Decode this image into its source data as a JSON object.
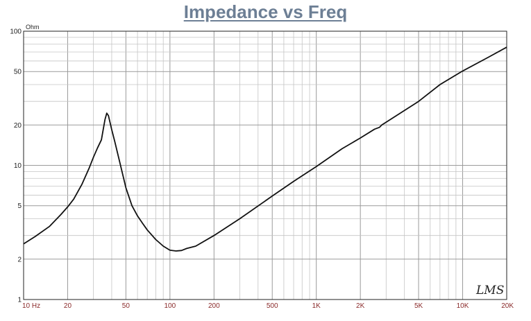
{
  "chart_data": {
    "type": "line",
    "title": "Impedance vs Freq",
    "ylabel": "Ohm",
    "xlabel": "",
    "x_scale": "log",
    "y_scale": "log",
    "xlim": [
      10,
      20000
    ],
    "ylim": [
      1,
      100
    ],
    "grid": true,
    "legend": "none",
    "x_ticks": [
      {
        "value": 10,
        "label": "10 Hz"
      },
      {
        "value": 20,
        "label": "20"
      },
      {
        "value": 50,
        "label": "50"
      },
      {
        "value": 100,
        "label": "100"
      },
      {
        "value": 200,
        "label": "200"
      },
      {
        "value": 500,
        "label": "500"
      },
      {
        "value": 1000,
        "label": "1K"
      },
      {
        "value": 2000,
        "label": "2K"
      },
      {
        "value": 5000,
        "label": "5K"
      },
      {
        "value": 10000,
        "label": "10K"
      },
      {
        "value": 20000,
        "label": "20K"
      }
    ],
    "y_ticks": [
      {
        "value": 1,
        "label": "1"
      },
      {
        "value": 2,
        "label": "2"
      },
      {
        "value": 5,
        "label": "5"
      },
      {
        "value": 10,
        "label": "10"
      },
      {
        "value": 20,
        "label": "20"
      },
      {
        "value": 50,
        "label": "50"
      },
      {
        "value": 100,
        "label": "100"
      }
    ],
    "series": [
      {
        "color": "#111111",
        "x": [
          10,
          12,
          15,
          18,
          20,
          22,
          25,
          28,
          30,
          32,
          34,
          35,
          36,
          37,
          38,
          40,
          42,
          45,
          50,
          55,
          60,
          65,
          70,
          80,
          90,
          100,
          110,
          120,
          130,
          150,
          200,
          300,
          500,
          700,
          1000,
          1500,
          2000,
          2500,
          2700,
          2800,
          3000,
          5000,
          7000,
          10000,
          15000,
          20000
        ],
        "y": [
          2.6,
          2.95,
          3.5,
          4.3,
          4.9,
          5.6,
          7.2,
          9.5,
          11.5,
          13.5,
          15.5,
          18.5,
          22,
          24.5,
          23.5,
          18.5,
          15,
          11,
          6.8,
          5.0,
          4.2,
          3.7,
          3.3,
          2.8,
          2.5,
          2.33,
          2.3,
          2.32,
          2.4,
          2.5,
          3.0,
          4.0,
          5.9,
          7.6,
          9.8,
          13.3,
          16.0,
          18.6,
          19.2,
          20.0,
          21.0,
          30.0,
          40.0,
          50.5,
          64.0,
          76.0
        ]
      }
    ],
    "watermark": "LMS"
  }
}
